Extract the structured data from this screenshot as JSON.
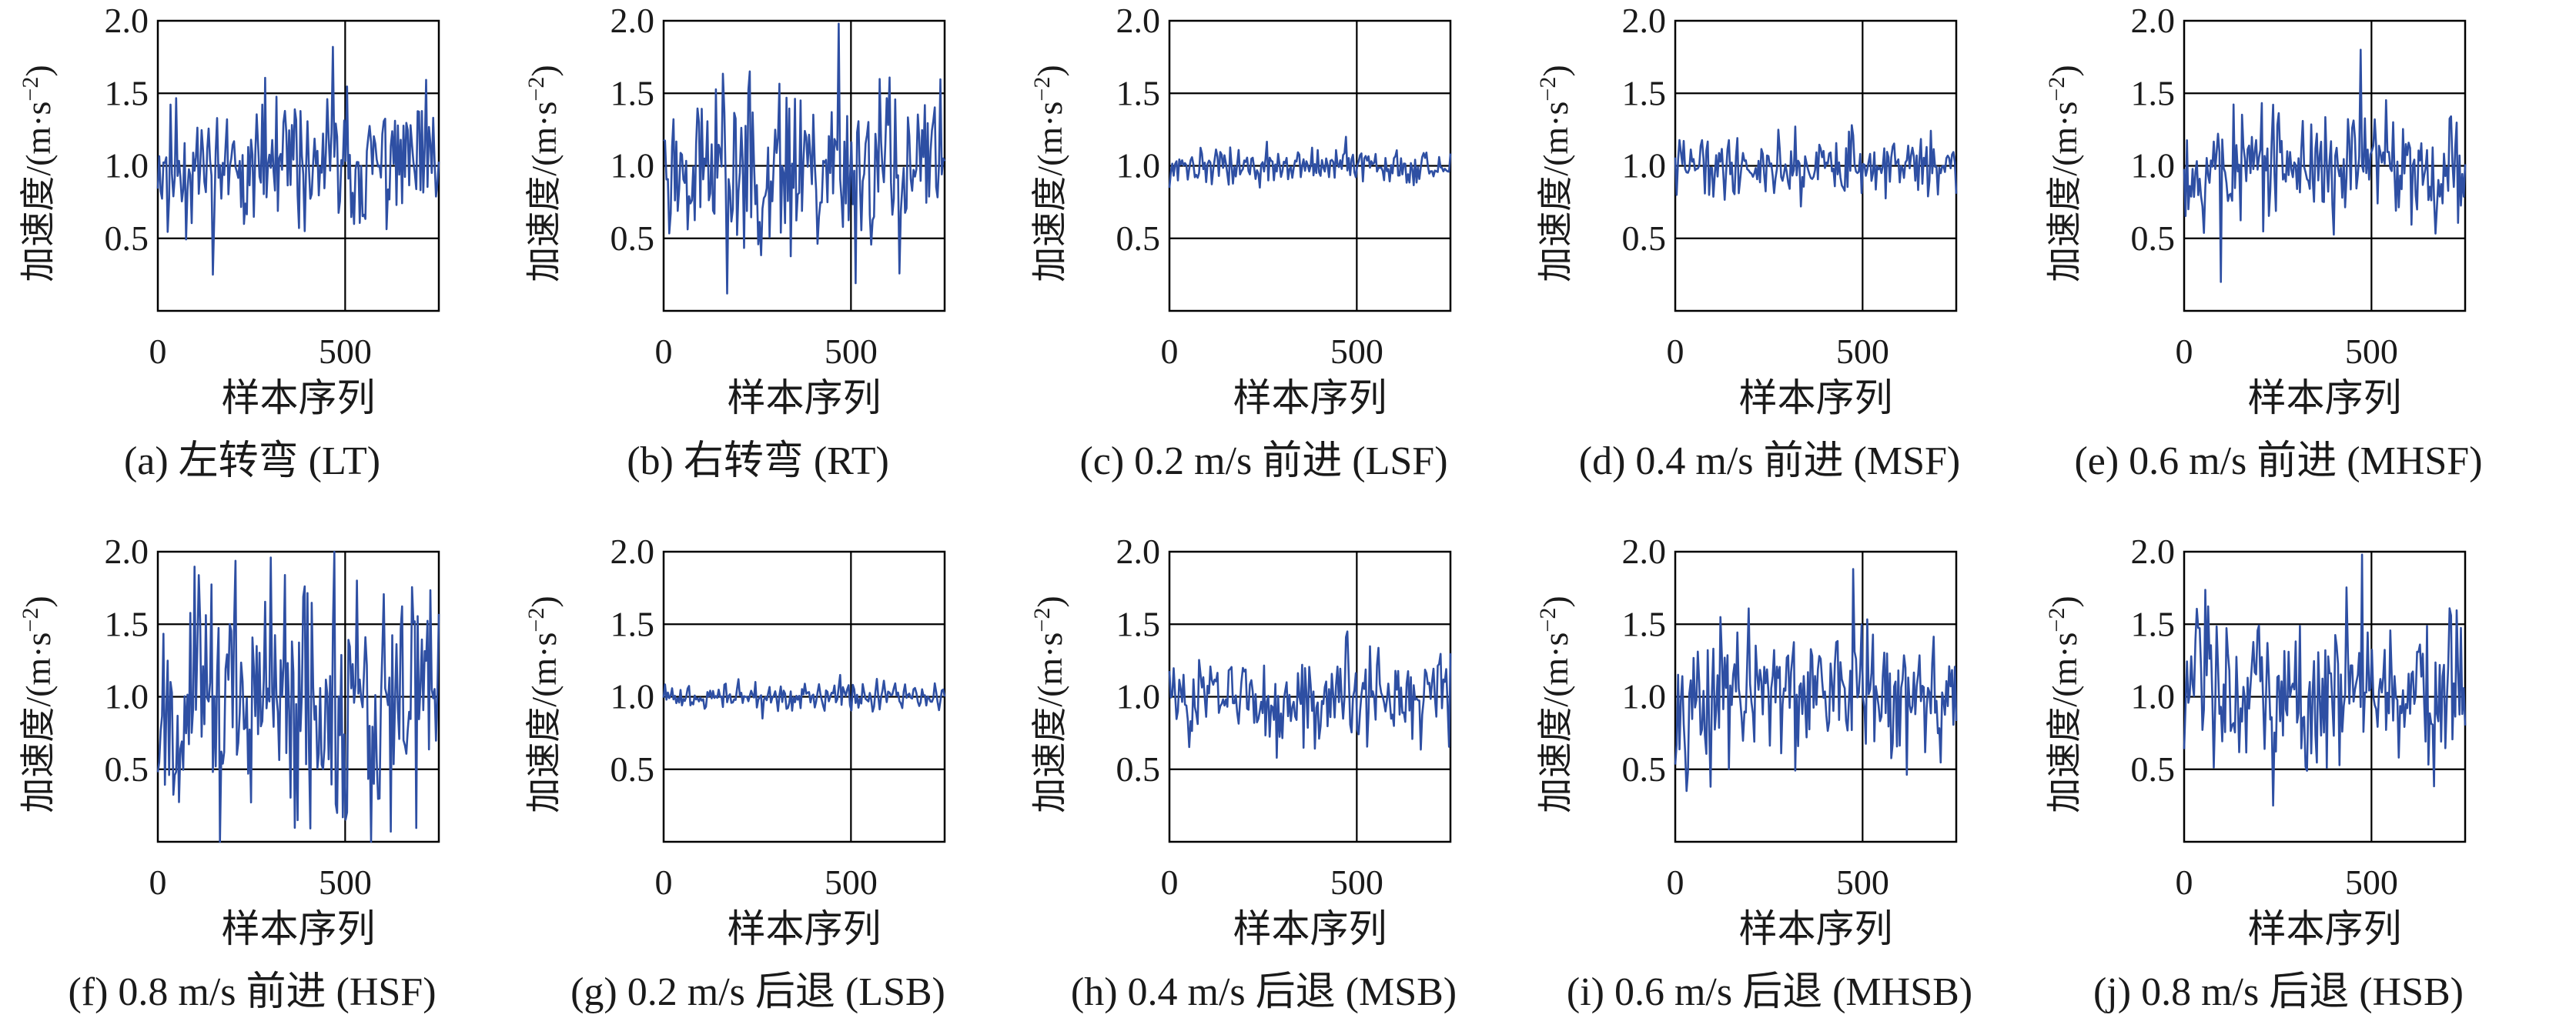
{
  "figure": {
    "x_axis_label": "样本序列",
    "y_axis_label_main": "加速度/(m·s",
    "y_axis_label_exp": "−2",
    "y_axis_label_close": ")",
    "line_color": "#2e4fa3",
    "grid_color": "#000000"
  },
  "chart_data": [
    {
      "type": "line",
      "id": "a",
      "caption": "(a) 左转弯 (LT)",
      "xlabel": "样本序列",
      "ylabel": "加速度/(m·s−2)",
      "xlim": [
        0,
        750
      ],
      "ylim": [
        0,
        2.0
      ],
      "xticks": [
        0,
        500
      ],
      "yticks": [
        0.5,
        1.0,
        1.5,
        2.0
      ],
      "n_points": 750,
      "center": 1.0,
      "amplitude": 0.22,
      "max": 1.82,
      "min": 0.25,
      "seed": 11
    },
    {
      "type": "line",
      "id": "b",
      "caption": "(b) 右转弯 (RT)",
      "xlabel": "样本序列",
      "ylabel": "加速度/(m·s−2)",
      "xlim": [
        0,
        750
      ],
      "ylim": [
        0,
        2.0
      ],
      "xticks": [
        0,
        500
      ],
      "yticks": [
        0.5,
        1.0,
        1.5,
        2.0
      ],
      "n_points": 750,
      "center": 1.0,
      "amplitude": 0.3,
      "max": 1.98,
      "min": 0.12,
      "seed": 23
    },
    {
      "type": "line",
      "id": "c",
      "caption": "(c) 0.2 m/s 前进 (LSF)",
      "xlabel": "样本序列",
      "ylabel": "加速度/(m·s−2)",
      "xlim": [
        0,
        750
      ],
      "ylim": [
        0,
        2.0
      ],
      "xticks": [
        0,
        500
      ],
      "yticks": [
        0.5,
        1.0,
        1.5,
        2.0
      ],
      "n_points": 750,
      "center": 1.0,
      "amplitude": 0.06,
      "max": 1.2,
      "min": 0.85,
      "seed": 37
    },
    {
      "type": "line",
      "id": "d",
      "caption": "(d) 0.4 m/s 前进 (MSF)",
      "xlabel": "样本序列",
      "ylabel": "加速度/(m·s−2)",
      "xlim": [
        0,
        750
      ],
      "ylim": [
        0,
        2.0
      ],
      "xticks": [
        0,
        500
      ],
      "yticks": [
        0.5,
        1.0,
        1.5,
        2.0
      ],
      "n_points": 750,
      "center": 1.0,
      "amplitude": 0.1,
      "max": 1.28,
      "min": 0.72,
      "seed": 41
    },
    {
      "type": "line",
      "id": "e",
      "caption": "(e) 0.6 m/s 前进 (MHSF)",
      "xlabel": "样本序列",
      "ylabel": "加速度/(m·s−2)",
      "xlim": [
        0,
        750
      ],
      "ylim": [
        0,
        2.0
      ],
      "xticks": [
        0,
        500
      ],
      "yticks": [
        0.5,
        1.0,
        1.5,
        2.0
      ],
      "n_points": 750,
      "center": 1.0,
      "amplitude": 0.2,
      "max": 1.8,
      "min": 0.2,
      "seed": 53
    },
    {
      "type": "line",
      "id": "f",
      "caption": "(f) 0.8 m/s 前进 (HSF)",
      "xlabel": "样本序列",
      "ylabel": "加速度/(m·s−2)",
      "xlim": [
        0,
        750
      ],
      "ylim": [
        0,
        2.0
      ],
      "xticks": [
        0,
        500
      ],
      "yticks": [
        0.5,
        1.0,
        1.5,
        2.0
      ],
      "n_points": 750,
      "center": 1.0,
      "amplitude": 0.42,
      "max": 2.0,
      "min": 0.0,
      "seed": 67
    },
    {
      "type": "line",
      "id": "g",
      "caption": "(g) 0.2 m/s 后退 (LSB)",
      "xlabel": "样本序列",
      "ylabel": "加速度/(m·s−2)",
      "xlim": [
        0,
        750
      ],
      "ylim": [
        0,
        2.0
      ],
      "xticks": [
        0,
        500
      ],
      "yticks": [
        0.5,
        1.0,
        1.5,
        2.0
      ],
      "n_points": 750,
      "center": 1.0,
      "amplitude": 0.05,
      "max": 1.15,
      "min": 0.85,
      "seed": 71
    },
    {
      "type": "line",
      "id": "h",
      "caption": "(h) 0.4 m/s 后退 (MSB)",
      "xlabel": "样本序列",
      "ylabel": "加速度/(m·s−2)",
      "xlim": [
        0,
        750
      ],
      "ylim": [
        0,
        2.0
      ],
      "xticks": [
        0,
        500
      ],
      "yticks": [
        0.5,
        1.0,
        1.5,
        2.0
      ],
      "n_points": 750,
      "center": 1.0,
      "amplitude": 0.15,
      "max": 1.45,
      "min": 0.58,
      "seed": 83
    },
    {
      "type": "line",
      "id": "i",
      "caption": "(i) 0.6 m/s 后退 (MHSB)",
      "xlabel": "样本序列",
      "ylabel": "加速度/(m·s−2)",
      "xlim": [
        0,
        750
      ],
      "ylim": [
        0,
        2.0
      ],
      "xticks": [
        0,
        500
      ],
      "yticks": [
        0.5,
        1.0,
        1.5,
        2.0
      ],
      "n_points": 750,
      "center": 1.0,
      "amplitude": 0.24,
      "max": 1.88,
      "min": 0.38,
      "seed": 97
    },
    {
      "type": "line",
      "id": "j",
      "caption": "(j) 0.8 m/s 后退 (HSB)",
      "xlabel": "样本序列",
      "ylabel": "加速度/(m·s−2)",
      "xlim": [
        0,
        750
      ],
      "ylim": [
        0,
        2.0
      ],
      "xticks": [
        0,
        500
      ],
      "yticks": [
        0.5,
        1.0,
        1.5,
        2.0
      ],
      "n_points": 750,
      "center": 1.0,
      "amplitude": 0.28,
      "max": 1.98,
      "min": 0.25,
      "seed": 103
    }
  ]
}
